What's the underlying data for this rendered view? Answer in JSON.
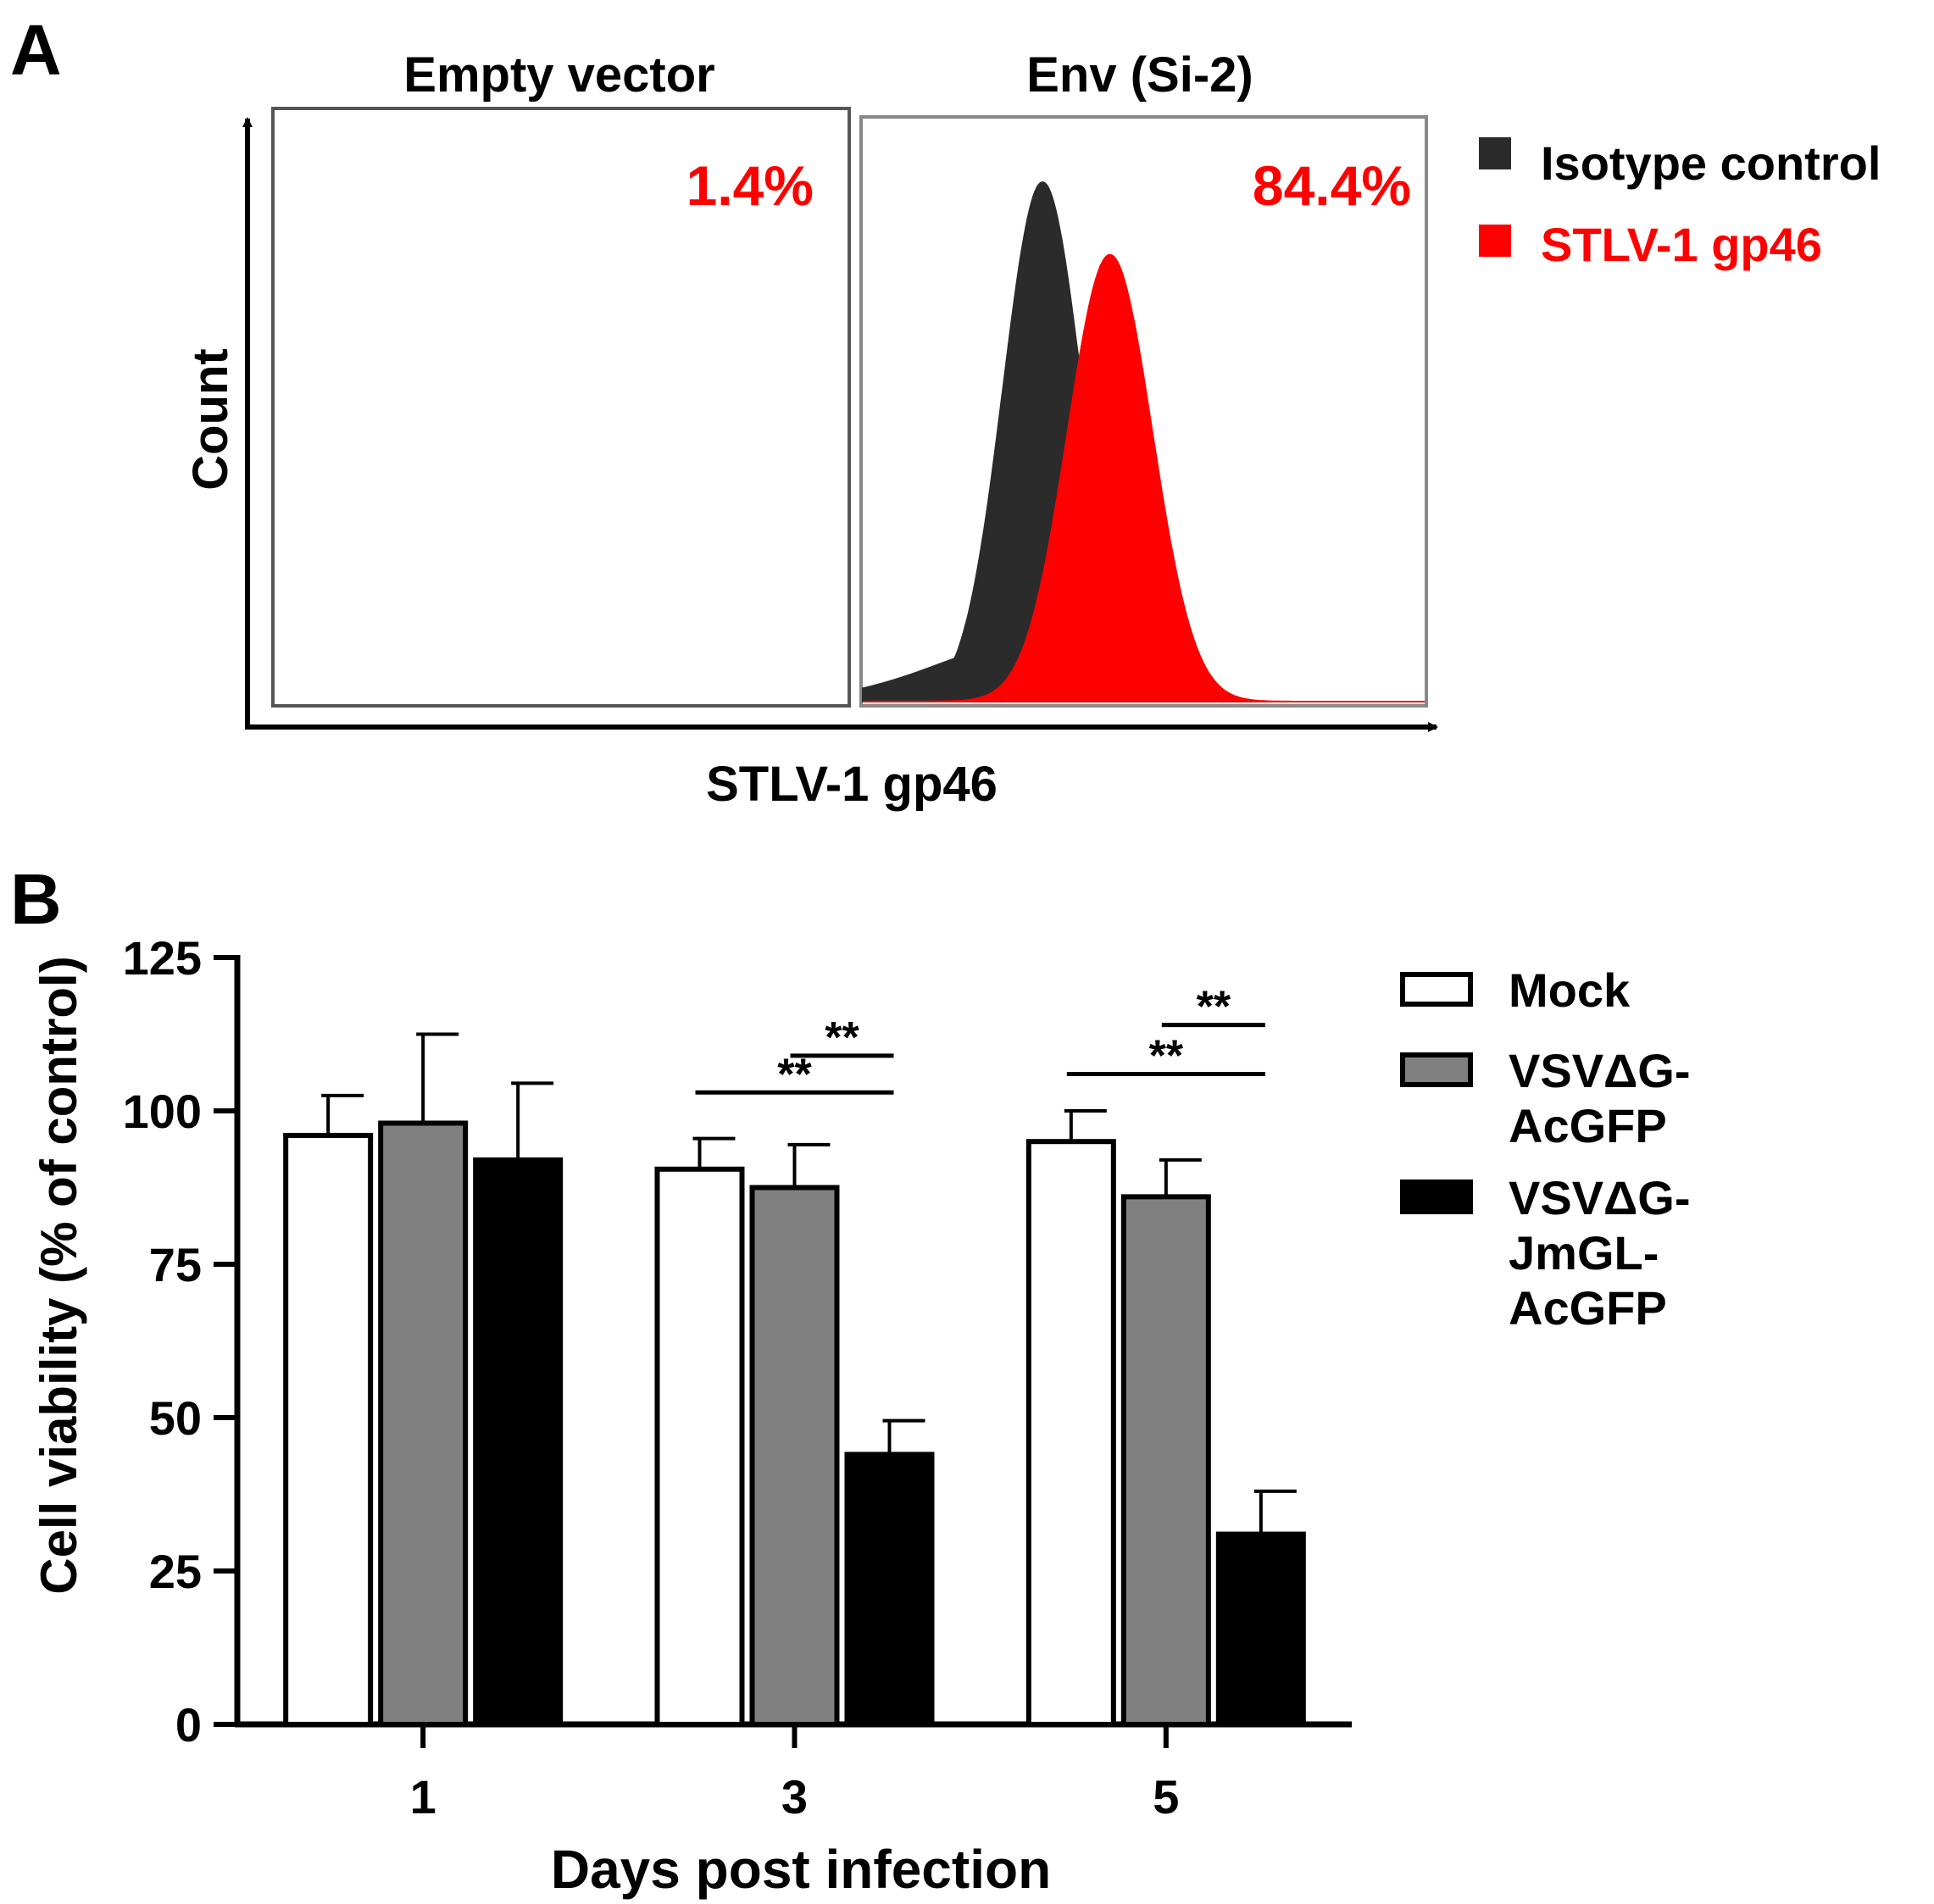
{
  "colors": {
    "isotype": "#2b2b2b",
    "stlv": "#ff0000",
    "mock": "#ffffff",
    "vsv_acgfp": "#808080",
    "vsv_jmgl": "#000000",
    "axis": "#000000",
    "panel_border": "#777777",
    "percent_text": "#ff0000"
  },
  "chart_data": [
    {
      "panel": "A",
      "type": "area",
      "panels": [
        {
          "title": "Empty vector",
          "percent": "1.4%",
          "has_histogram": false
        },
        {
          "title": "Env (Si-2)",
          "percent": "84.4%",
          "has_histogram": true
        }
      ],
      "xlabel": "STLV-1 gp46",
      "ylabel": "Count",
      "legend": {
        "position": "top-right",
        "entries": [
          {
            "label": "Isotype control",
            "color": "#2b2b2b"
          },
          {
            "label": "STLV-1 gp46",
            "color": "#ff0000"
          }
        ]
      },
      "series": [
        {
          "name": "Isotype control",
          "peak_position": 0.32,
          "relative_height": 1.0,
          "width": 0.07,
          "left_tail": 0.12
        },
        {
          "name": "STLV-1 gp46",
          "peak_position": 0.44,
          "relative_height": 0.86,
          "width": 0.075,
          "left_tail": 0.0
        }
      ]
    },
    {
      "panel": "B",
      "type": "bar",
      "xlabel": "Days post infection",
      "ylabel": "Cell viability (% of control)",
      "ylim": [
        0,
        125
      ],
      "yticks": [
        0,
        25,
        50,
        75,
        100,
        125
      ],
      "categories": [
        "1",
        "3",
        "5"
      ],
      "series": [
        {
          "name": "Mock",
          "color": "#ffffff",
          "values": [
            96,
            90.5,
            95
          ],
          "errors": [
            6.5,
            5,
            5
          ]
        },
        {
          "name": "VSVΔG-AcGFP",
          "color": "#808080",
          "values": [
            98,
            87.5,
            86
          ],
          "errors": [
            14.5,
            7,
            6
          ]
        },
        {
          "name": "VSVΔG-JmGL-AcGFP",
          "color": "#000000",
          "values": [
            92,
            44,
            31
          ],
          "errors": [
            12.5,
            5.5,
            7
          ]
        }
      ],
      "legend": {
        "position": "right",
        "entries": [
          {
            "lines": [
              "Mock"
            ],
            "color": "#ffffff"
          },
          {
            "lines": [
              "VSVΔG-",
              "AcGFP"
            ],
            "color": "#808080"
          },
          {
            "lines": [
              "VSVΔG-",
              "JmGL-",
              "AcGFP"
            ],
            "color": "#000000"
          }
        ]
      },
      "significance": [
        {
          "category": "3",
          "from_series": 0,
          "to_series": 2,
          "label": "**",
          "y": 103
        },
        {
          "category": "3",
          "from_series": 1,
          "to_series": 2,
          "label": "**",
          "y": 109
        },
        {
          "category": "5",
          "from_series": 0,
          "to_series": 2,
          "label": "**",
          "y": 106
        },
        {
          "category": "5",
          "from_series": 1,
          "to_series": 2,
          "label": "**",
          "y": 114
        }
      ]
    }
  ]
}
